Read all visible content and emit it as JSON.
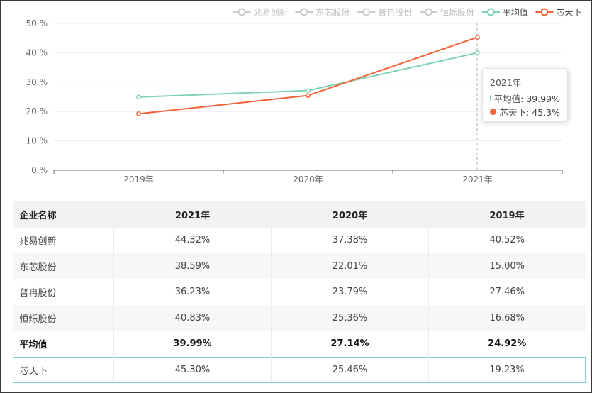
{
  "chart_data": {
    "type": "line",
    "categories": [
      "2019年",
      "2020年",
      "2021年"
    ],
    "y_ticks": [
      "0 %",
      "10 %",
      "20 %",
      "30 %",
      "40 %",
      "50 %"
    ],
    "ylim": [
      0,
      50
    ],
    "legend_position": "top-right",
    "series": [
      {
        "name": "兆易创新",
        "values": [
          40.52,
          37.38,
          44.32
        ],
        "color": "#cccccc",
        "visible": false
      },
      {
        "name": "东芯股份",
        "values": [
          15.0,
          22.01,
          38.59
        ],
        "color": "#cccccc",
        "visible": false
      },
      {
        "name": "普冉股份",
        "values": [
          27.46,
          23.79,
          36.23
        ],
        "color": "#cccccc",
        "visible": false
      },
      {
        "name": "恒烁股份",
        "values": [
          16.68,
          25.36,
          40.83
        ],
        "color": "#cccccc",
        "visible": false
      },
      {
        "name": "平均值",
        "values": [
          24.92,
          27.14,
          39.99
        ],
        "color": "#7fd3b2",
        "visible": true
      },
      {
        "name": "芯天下",
        "values": [
          19.23,
          25.46,
          45.3
        ],
        "color": "#f4623a",
        "visible": true
      }
    ],
    "tooltip": {
      "title": "2021年",
      "rows": [
        {
          "label": "平均值: 39.99%",
          "color": "#7fd3b2"
        },
        {
          "label": "芯天下: 45.3%",
          "color": "#f4623a"
        }
      ]
    }
  },
  "table": {
    "headers": [
      "企业名称",
      "2021年",
      "2020年",
      "2019年"
    ],
    "rows": [
      [
        "兆易创新",
        "44.32%",
        "37.38%",
        "40.52%"
      ],
      [
        "东芯股份",
        "38.59%",
        "22.01%",
        "15.00%"
      ],
      [
        "普冉股份",
        "36.23%",
        "23.79%",
        "27.46%"
      ],
      [
        "恒烁股份",
        "40.83%",
        "25.36%",
        "16.68%"
      ],
      [
        "平均值",
        "39.99%",
        "27.14%",
        "24.92%"
      ],
      [
        "芯天下",
        "45.30%",
        "25.46%",
        "19.23%"
      ]
    ]
  }
}
